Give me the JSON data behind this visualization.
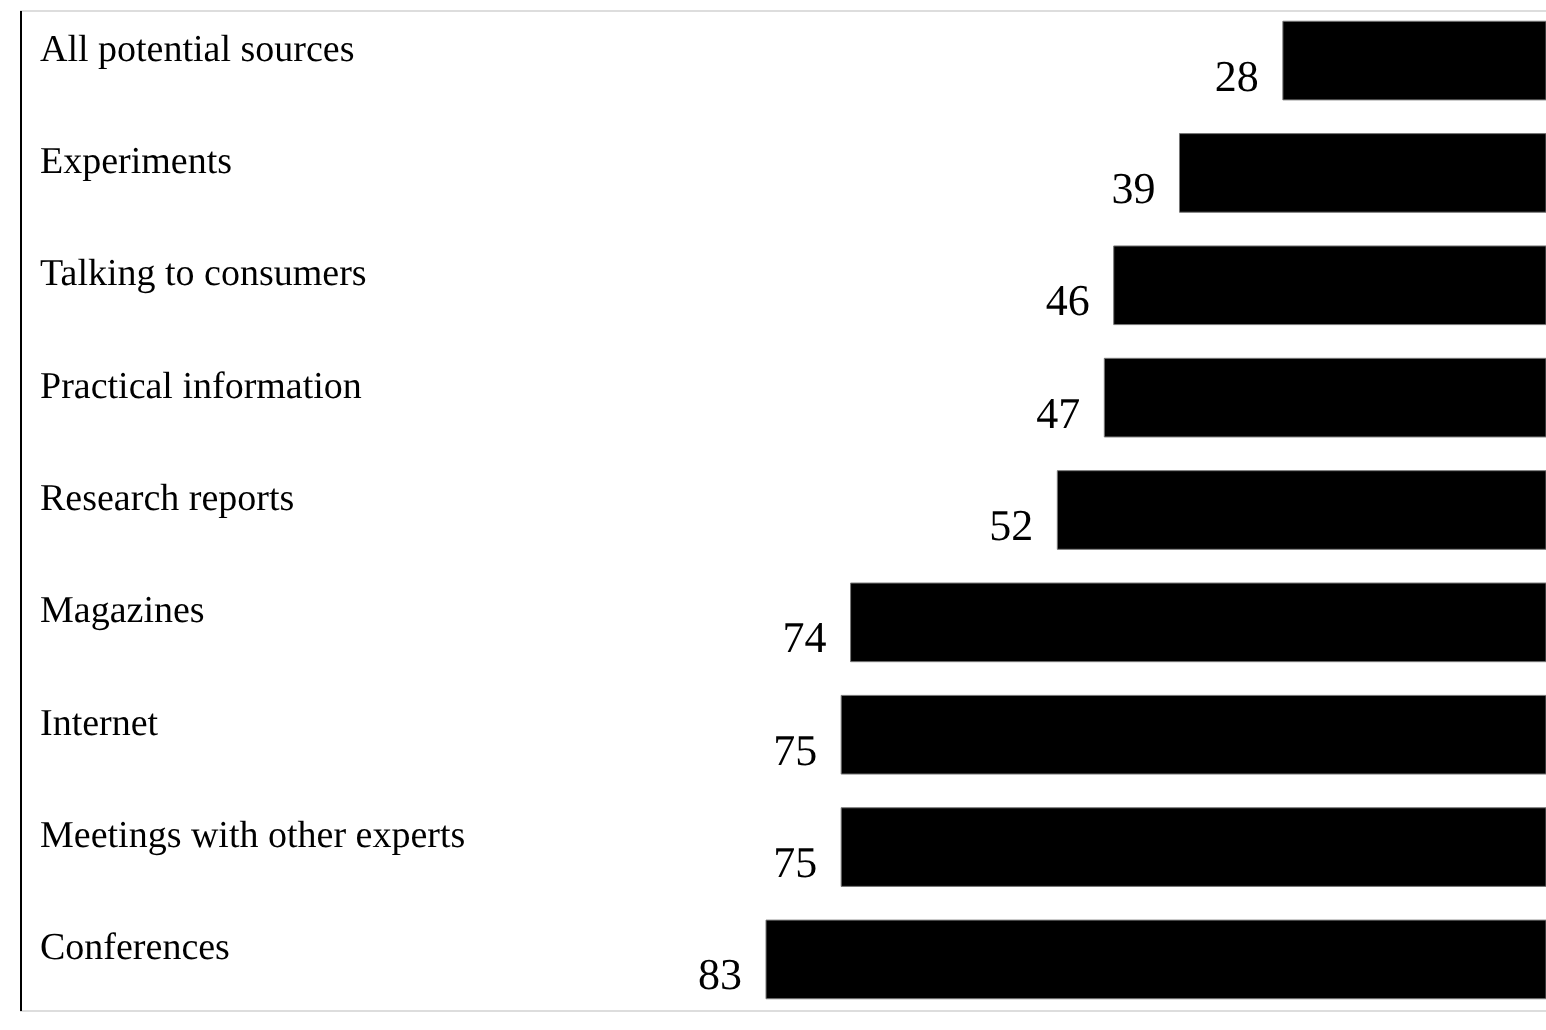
{
  "chart_data": {
    "type": "bar",
    "orientation": "horizontal",
    "data_labels": true,
    "categories": [
      "All potential sources",
      "Experiments",
      "Talking to consumers",
      "Practical information",
      "Research reports",
      "Magazines",
      "Internet",
      "Meetings with other experts",
      "Conferences"
    ],
    "values": [
      28,
      39,
      46,
      47,
      52,
      74,
      75,
      75,
      83
    ],
    "color": "#000000"
  }
}
